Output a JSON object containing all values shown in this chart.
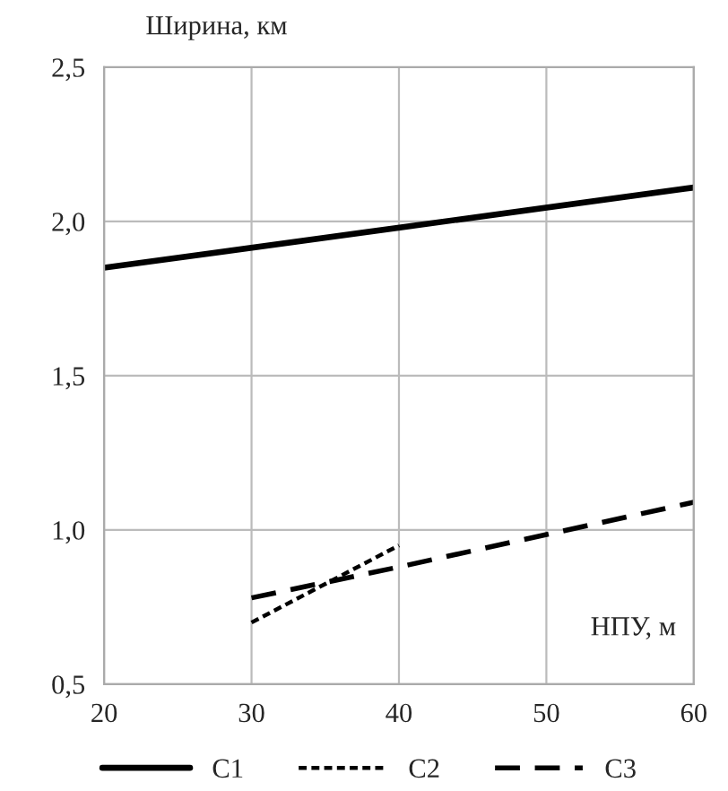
{
  "chart_data": {
    "type": "line",
    "xlabel": "НПУ, м",
    "ylabel": "Ширина, км",
    "series": [
      {
        "name": "С1",
        "x": [
          20,
          60
        ],
        "values": [
          1.85,
          2.11
        ],
        "color": "#000000",
        "line_style": "solid"
      },
      {
        "name": "С2",
        "x": [
          30,
          40
        ],
        "values": [
          0.7,
          0.95
        ],
        "color": "#000000",
        "line_style": "dotted"
      },
      {
        "name": "С3",
        "x": [
          30,
          40,
          60
        ],
        "values": [
          0.78,
          0.88,
          1.09
        ],
        "color": "#000000",
        "line_style": "dashed"
      }
    ],
    "xlim": [
      20,
      60
    ],
    "xticks": [
      20,
      30,
      40,
      50,
      60
    ],
    "ylim": [
      0.5,
      2.5
    ],
    "yticks": [
      {
        "value": 0.5,
        "label": "0,5"
      },
      {
        "value": 1.0,
        "label": "1,0"
      },
      {
        "value": 1.5,
        "label": "1,5"
      },
      {
        "value": 2.0,
        "label": "2,0"
      },
      {
        "value": 2.5,
        "label": "2,5"
      }
    ],
    "grid": true,
    "legend": "bottom"
  }
}
